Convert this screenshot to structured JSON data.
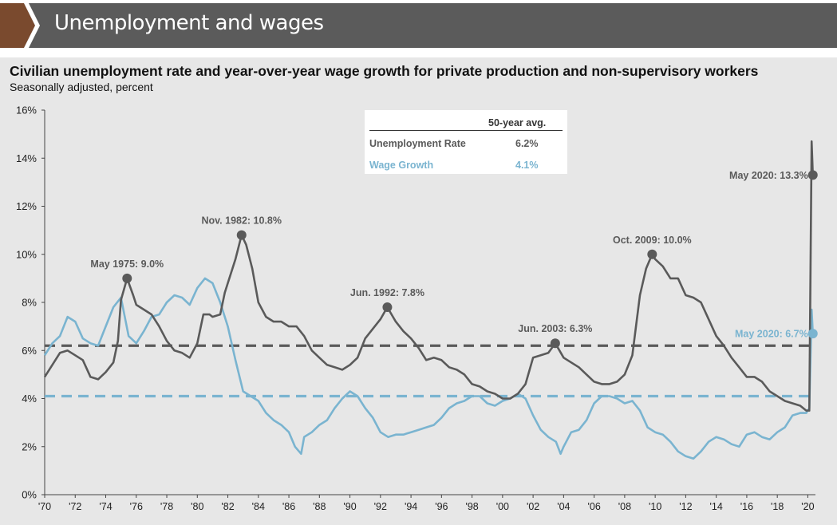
{
  "header": {
    "title": "Unemployment and wages"
  },
  "colors": {
    "unemployment": "#5a5a5a",
    "wages": "#7ab4d0",
    "header_bg": "#5b5b5b",
    "arrow": "#7a4a2e",
    "panel_bg": "#e7e7e7"
  },
  "chart_data": {
    "type": "line",
    "title": "Civilian unemployment rate and year-over-year wage growth for private production and non-supervisory workers",
    "subtitle": "Seasonally adjusted, percent",
    "ylim": [
      0,
      16
    ],
    "xlim": [
      1970,
      2020.5
    ],
    "y_ticks": [
      "0%",
      "2%",
      "4%",
      "6%",
      "8%",
      "10%",
      "12%",
      "14%",
      "16%"
    ],
    "x_ticks": [
      "'70",
      "'72",
      "'74",
      "'76",
      "'78",
      "'80",
      "'82",
      "'84",
      "'86",
      "'88",
      "'90",
      "'92",
      "'94",
      "'96",
      "'98",
      "'00",
      "'02",
      "'04",
      "'06",
      "'08",
      "'10",
      "'12",
      "'14",
      "'16",
      "'18",
      "'20"
    ],
    "grid": false,
    "legend": {
      "header": "50-year avg.",
      "rows": [
        {
          "label": "Unemployment Rate",
          "value": "6.2%"
        },
        {
          "label": "Wage Growth",
          "value": "4.1%"
        }
      ]
    },
    "averages": {
      "unemployment": 6.2,
      "wages": 4.1
    },
    "series": [
      {
        "name": "Unemployment Rate",
        "x": [
          1970.0,
          1970.5,
          1971.0,
          1971.5,
          1972.0,
          1972.5,
          1973.0,
          1973.5,
          1974.0,
          1974.5,
          1974.8,
          1975.0,
          1975.4,
          1975.8,
          1976.0,
          1976.5,
          1977.0,
          1977.5,
          1978.0,
          1978.5,
          1979.0,
          1979.5,
          1980.0,
          1980.4,
          1980.8,
          1981.0,
          1981.5,
          1981.8,
          1982.0,
          1982.5,
          1982.9,
          1983.2,
          1983.6,
          1984.0,
          1984.5,
          1985.0,
          1985.5,
          1986.0,
          1986.5,
          1987.0,
          1987.5,
          1988.0,
          1988.5,
          1989.0,
          1989.5,
          1990.0,
          1990.5,
          1991.0,
          1991.5,
          1992.0,
          1992.45,
          1993.0,
          1993.5,
          1994.0,
          1994.5,
          1995.0,
          1995.5,
          1996.0,
          1996.5,
          1997.0,
          1997.5,
          1998.0,
          1998.5,
          1999.0,
          1999.5,
          2000.0,
          2000.5,
          2001.0,
          2001.5,
          2002.0,
          2002.5,
          2003.0,
          2003.45,
          2004.0,
          2004.5,
          2005.0,
          2005.5,
          2006.0,
          2006.5,
          2007.0,
          2007.5,
          2008.0,
          2008.5,
          2009.0,
          2009.4,
          2009.8,
          2010.0,
          2010.5,
          2011.0,
          2011.5,
          2012.0,
          2012.5,
          2013.0,
          2013.5,
          2014.0,
          2014.5,
          2015.0,
          2015.5,
          2016.0,
          2016.5,
          2017.0,
          2017.5,
          2018.0,
          2018.5,
          2019.0,
          2019.5,
          2019.9,
          2020.1,
          2020.25,
          2020.33
        ],
        "values": [
          4.9,
          5.4,
          5.9,
          6.0,
          5.8,
          5.6,
          4.9,
          4.8,
          5.1,
          5.5,
          6.4,
          8.1,
          9.0,
          8.3,
          7.9,
          7.7,
          7.5,
          7.0,
          6.4,
          6.0,
          5.9,
          5.7,
          6.3,
          7.5,
          7.5,
          7.4,
          7.5,
          8.4,
          8.8,
          9.8,
          10.8,
          10.4,
          9.4,
          8.0,
          7.4,
          7.2,
          7.2,
          7.0,
          7.0,
          6.6,
          6.0,
          5.7,
          5.4,
          5.3,
          5.2,
          5.4,
          5.7,
          6.5,
          6.9,
          7.3,
          7.8,
          7.2,
          6.8,
          6.5,
          6.1,
          5.6,
          5.7,
          5.6,
          5.3,
          5.2,
          5.0,
          4.6,
          4.5,
          4.3,
          4.2,
          4.0,
          4.0,
          4.2,
          4.6,
          5.7,
          5.8,
          5.9,
          6.3,
          5.7,
          5.5,
          5.3,
          5.0,
          4.7,
          4.6,
          4.6,
          4.7,
          5.0,
          5.8,
          8.3,
          9.4,
          10.0,
          9.8,
          9.5,
          9.0,
          9.0,
          8.3,
          8.2,
          8.0,
          7.3,
          6.6,
          6.2,
          5.7,
          5.3,
          4.9,
          4.9,
          4.7,
          4.3,
          4.1,
          3.9,
          3.8,
          3.7,
          3.5,
          3.5,
          14.7,
          13.3
        ]
      },
      {
        "name": "Wage Growth",
        "x": [
          1970.0,
          1970.5,
          1971.0,
          1971.5,
          1972.0,
          1972.5,
          1973.0,
          1973.5,
          1974.0,
          1974.5,
          1975.0,
          1975.5,
          1976.0,
          1976.5,
          1977.0,
          1977.5,
          1978.0,
          1978.5,
          1979.0,
          1979.5,
          1980.0,
          1980.5,
          1981.0,
          1981.5,
          1982.0,
          1982.5,
          1983.0,
          1983.5,
          1984.0,
          1984.5,
          1985.0,
          1985.5,
          1986.0,
          1986.4,
          1986.8,
          1987.0,
          1987.5,
          1988.0,
          1988.5,
          1989.0,
          1989.5,
          1990.0,
          1990.5,
          1991.0,
          1991.5,
          1992.0,
          1992.5,
          1993.0,
          1993.5,
          1994.0,
          1994.5,
          1995.0,
          1995.5,
          1996.0,
          1996.5,
          1997.0,
          1997.5,
          1998.0,
          1998.5,
          1999.0,
          1999.5,
          2000.0,
          2000.5,
          2001.0,
          2001.5,
          2002.0,
          2002.5,
          2003.0,
          2003.5,
          2003.8,
          2004.0,
          2004.5,
          2005.0,
          2005.5,
          2006.0,
          2006.5,
          2007.0,
          2007.5,
          2008.0,
          2008.5,
          2009.0,
          2009.5,
          2010.0,
          2010.5,
          2011.0,
          2011.5,
          2012.0,
          2012.5,
          2013.0,
          2013.5,
          2014.0,
          2014.5,
          2015.0,
          2015.5,
          2016.0,
          2016.5,
          2017.0,
          2017.5,
          2018.0,
          2018.5,
          2019.0,
          2019.5,
          2019.9,
          2020.1,
          2020.25,
          2020.33
        ],
        "values": [
          5.8,
          6.3,
          6.6,
          7.4,
          7.2,
          6.5,
          6.3,
          6.2,
          7.0,
          7.8,
          8.2,
          6.6,
          6.3,
          6.8,
          7.4,
          7.5,
          8.0,
          8.3,
          8.2,
          7.9,
          8.6,
          9.0,
          8.8,
          8.0,
          7.0,
          5.6,
          4.3,
          4.1,
          3.9,
          3.4,
          3.1,
          2.9,
          2.6,
          2.0,
          1.7,
          2.4,
          2.6,
          2.9,
          3.1,
          3.6,
          4.0,
          4.3,
          4.1,
          3.6,
          3.2,
          2.6,
          2.4,
          2.5,
          2.5,
          2.6,
          2.7,
          2.8,
          2.9,
          3.2,
          3.6,
          3.8,
          3.9,
          4.1,
          4.1,
          3.8,
          3.7,
          3.9,
          4.0,
          4.2,
          4.0,
          3.3,
          2.7,
          2.4,
          2.2,
          1.7,
          2.0,
          2.6,
          2.7,
          3.1,
          3.8,
          4.1,
          4.1,
          4.0,
          3.8,
          3.9,
          3.5,
          2.8,
          2.6,
          2.5,
          2.2,
          1.8,
          1.6,
          1.5,
          1.8,
          2.2,
          2.4,
          2.3,
          2.1,
          2.0,
          2.5,
          2.6,
          2.4,
          2.3,
          2.6,
          2.8,
          3.3,
          3.4,
          3.4,
          3.6,
          7.7,
          6.7
        ]
      }
    ],
    "annotations": [
      {
        "label": "May 1975: 9.0%",
        "x": 1975.4,
        "y": 9.0,
        "series": "unemployment"
      },
      {
        "label": "Nov. 1982: 10.8%",
        "x": 1982.9,
        "y": 10.8,
        "series": "unemployment"
      },
      {
        "label": "Jun. 1992: 7.8%",
        "x": 1992.45,
        "y": 7.8,
        "series": "unemployment"
      },
      {
        "label": "Jun. 2003: 6.3%",
        "x": 2003.45,
        "y": 6.3,
        "series": "unemployment"
      },
      {
        "label": "Oct. 2009: 10.0%",
        "x": 2009.8,
        "y": 10.0,
        "series": "unemployment"
      },
      {
        "label": "May 2020: 13.3%",
        "x": 2020.33,
        "y": 13.3,
        "series": "unemployment"
      },
      {
        "label": "May 2020: 6.7%",
        "x": 2020.33,
        "y": 6.7,
        "series": "wages"
      }
    ]
  }
}
